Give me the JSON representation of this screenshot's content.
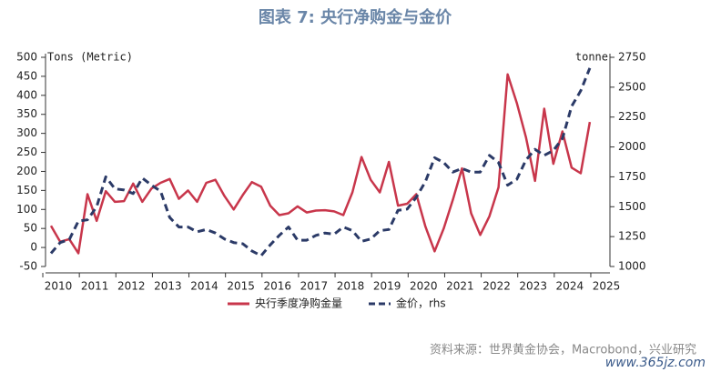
{
  "chart_data": {
    "type": "line",
    "title": "图表 7: 央行净购金与金价",
    "y_label": "Tons (Metric)",
    "y2_label": "tonne",
    "source": "资料来源：世界黄金协会，Macrobond，兴业研究",
    "watermark": "www.365jz.com",
    "x": [
      2010,
      2010.25,
      2010.5,
      2010.75,
      2011,
      2011.25,
      2011.5,
      2011.75,
      2012,
      2012.25,
      2012.5,
      2012.75,
      2013,
      2013.25,
      2013.5,
      2013.75,
      2014,
      2014.25,
      2014.5,
      2014.75,
      2015,
      2015.25,
      2015.5,
      2015.75,
      2016,
      2016.25,
      2016.5,
      2016.75,
      2017,
      2017.25,
      2017.5,
      2017.75,
      2018,
      2018.25,
      2018.5,
      2018.75,
      2019,
      2019.25,
      2019.5,
      2019.75,
      2020,
      2020.25,
      2020.5,
      2020.75,
      2021,
      2021.25,
      2021.5,
      2021.75,
      2022,
      2022.25,
      2022.5,
      2022.75,
      2023,
      2023.25,
      2023.5,
      2023.75,
      2024,
      2024.25,
      2024.5,
      2024.75
    ],
    "xlim": [
      2009.85,
      2025.3
    ],
    "xticks": [
      2010,
      2011,
      2012,
      2013,
      2014,
      2015,
      2016,
      2017,
      2018,
      2019,
      2020,
      2021,
      2022,
      2023,
      2024,
      2025
    ],
    "ylim": [
      -50,
      500
    ],
    "yticks": [
      -50,
      0,
      50,
      100,
      150,
      200,
      250,
      300,
      350,
      400,
      450,
      500
    ],
    "y2lim": [
      1000,
      2750
    ],
    "y2ticks": [
      1000,
      1250,
      1500,
      1750,
      2000,
      2250,
      2500,
      2750
    ],
    "series": [
      {
        "name": "央行季度净购金量",
        "color": "#c8364b",
        "values": [
          57,
          15,
          22,
          -15,
          140,
          70,
          148,
          120,
          122,
          168,
          120,
          155,
          170,
          180,
          128,
          150,
          120,
          170,
          178,
          135,
          100,
          138,
          172,
          160,
          110,
          85,
          90,
          108,
          92,
          97,
          98,
          95,
          85,
          145,
          238,
          178,
          145,
          225,
          110,
          115,
          140,
          55,
          -10,
          50,
          125,
          208,
          90,
          33,
          82,
          158,
          455,
          380,
          290,
          175,
          365,
          220,
          305,
          210,
          195,
          330
        ]
      },
      {
        "name": "金价，rhs",
        "color": "#2b3a67",
        "axis": "y2",
        "values": [
          1110,
          1200,
          1225,
          1380,
          1390,
          1500,
          1750,
          1650,
          1640,
          1610,
          1740,
          1680,
          1630,
          1410,
          1330,
          1330,
          1290,
          1310,
          1280,
          1230,
          1200,
          1190,
          1130,
          1090,
          1180,
          1260,
          1330,
          1220,
          1220,
          1260,
          1280,
          1270,
          1330,
          1300,
          1210,
          1230,
          1300,
          1310,
          1470,
          1480,
          1580,
          1710,
          1910,
          1870,
          1790,
          1820,
          1790,
          1790,
          1930,
          1870,
          1680,
          1730,
          1890,
          1980,
          1930,
          1970,
          2070,
          2340,
          2470,
          2660
        ]
      }
    ]
  }
}
